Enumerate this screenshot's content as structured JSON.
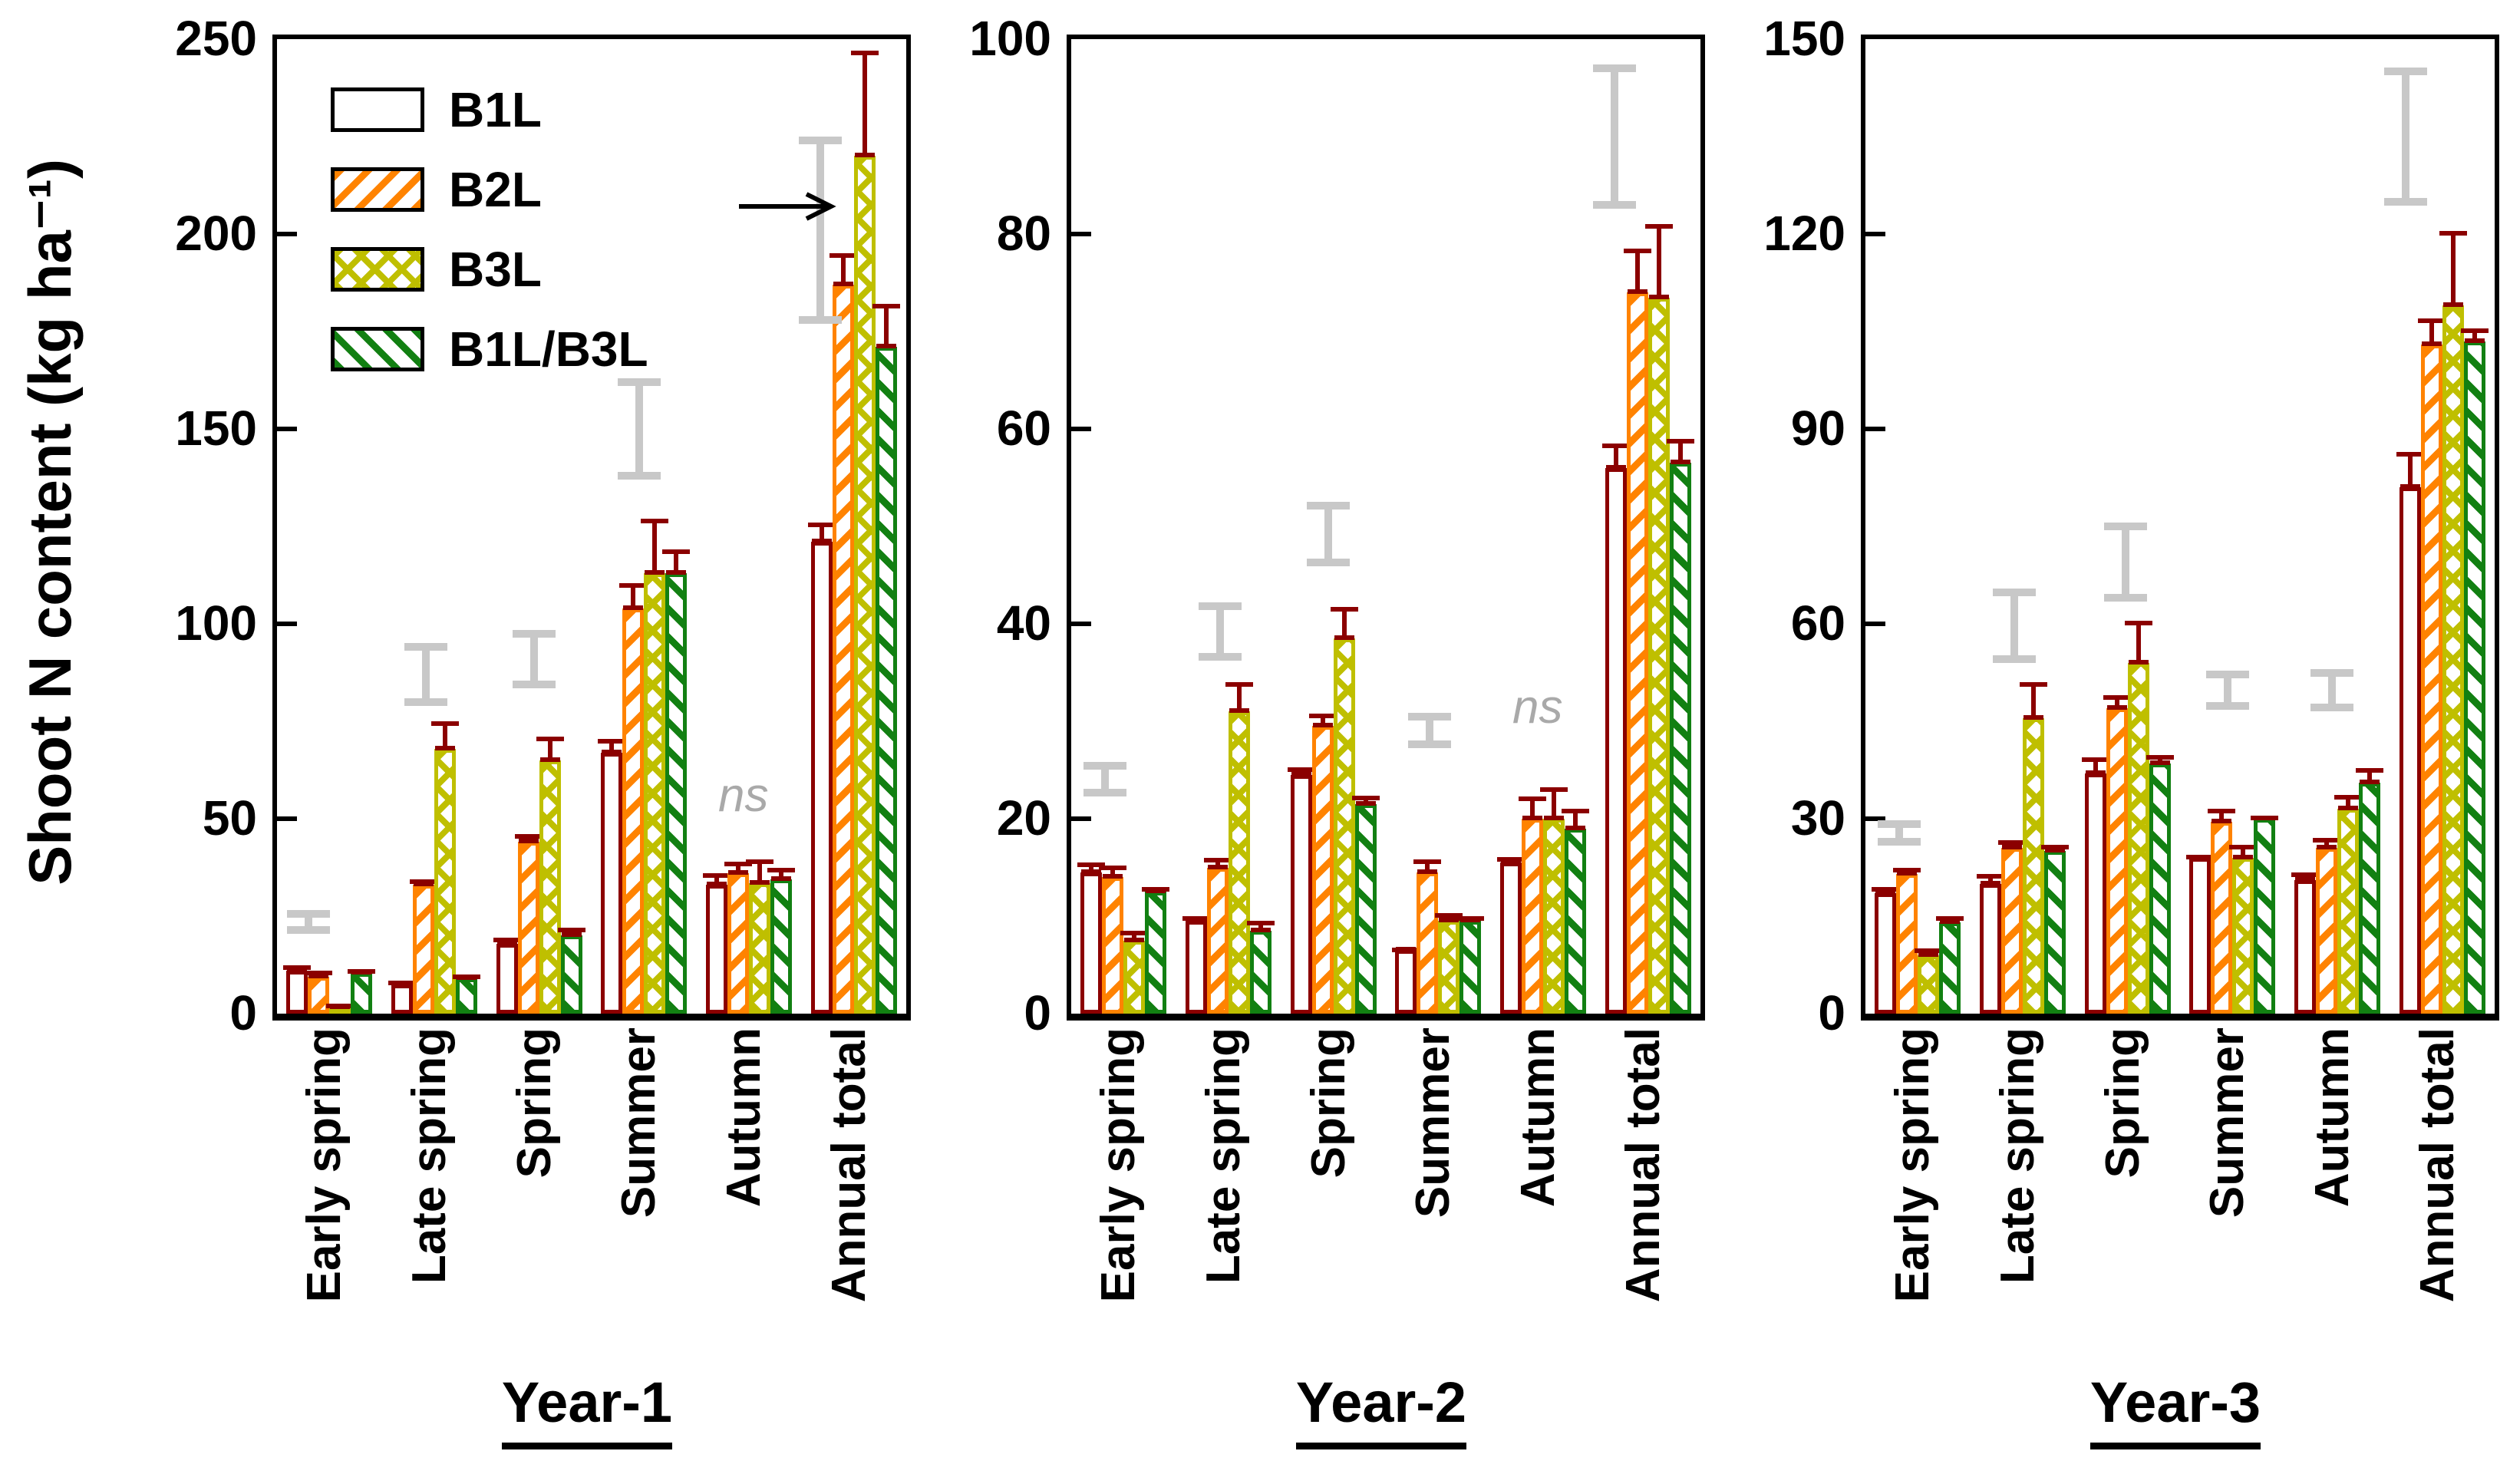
{
  "ylabel": "Shoot N content (kg ha⁻¹)",
  "ns_text": "ns",
  "colors": {
    "b1l": "#8B0000",
    "b2l": "#FF8300",
    "b3l": "#BFBF00",
    "b1l_b3l": "#128012",
    "error_bar": "#8B0000",
    "lsd_bar": "#C8C8C8",
    "axis": "#000000",
    "ns_gray": "#A9A9A9"
  },
  "legend": [
    {
      "label": "B1L",
      "key": "b1l"
    },
    {
      "label": "B2L",
      "key": "b2l"
    },
    {
      "label": "B3L",
      "key": "b3l"
    },
    {
      "label": "B1L/B3L",
      "key": "b1l_b3l"
    }
  ],
  "categories": [
    "Early spring",
    "Late spring",
    "Spring",
    "Summer",
    "Autumn",
    "Annual total"
  ],
  "chart_data": [
    {
      "type": "bar",
      "title": "Year-1",
      "ylim": [
        0,
        250
      ],
      "yticks": [
        0,
        50,
        100,
        150,
        200,
        250
      ],
      "series": [
        {
          "name": "B1L",
          "key": "b1l",
          "values": [
            11,
            7.5,
            18,
            67,
            33,
            121
          ],
          "errors": [
            1.5,
            1,
            1.5,
            3.5,
            3,
            5
          ]
        },
        {
          "name": "B2L",
          "key": "b2l",
          "values": [
            9.5,
            33,
            44,
            104,
            36,
            187
          ],
          "errors": [
            1.5,
            1.5,
            2,
            6.5,
            3,
            8
          ]
        },
        {
          "name": "B3L",
          "key": "b3l",
          "values": [
            1.5,
            68,
            65,
            113,
            33.5,
            220
          ],
          "errors": [
            1,
            7,
            6,
            14,
            6,
            27
          ]
        },
        {
          "name": "B1L/B3L",
          "key": "b1l_b3l",
          "values": [
            10.5,
            9,
            20,
            113,
            34.5,
            171
          ],
          "errors": [
            1,
            1,
            2,
            6,
            3,
            11
          ]
        }
      ],
      "lsd_bars": [
        {
          "category": "Early spring",
          "cat": 0,
          "lo": 21.5,
          "hi": 25.5,
          "frac": 0.3
        },
        {
          "category": "Late spring",
          "cat": 1,
          "lo": 80,
          "hi": 94,
          "frac": 0.42
        },
        {
          "category": "Spring",
          "cat": 2,
          "lo": 84.5,
          "hi": 97.5,
          "frac": 0.45
        },
        {
          "category": "Summer",
          "cat": 3,
          "lo": 138,
          "hi": 162,
          "frac": 0.45
        },
        {
          "category": "Annual total",
          "cat": 5,
          "lo": 178,
          "hi": 224,
          "frac": 0.18
        }
      ],
      "ns_labels": [
        {
          "category": "Autumn",
          "cat": 4,
          "y": 55
        }
      ],
      "arrows": [
        {
          "category": "Annual total",
          "cat": 5,
          "series": "B3L",
          "y": 207
        }
      ]
    },
    {
      "type": "bar",
      "title": "Year-2",
      "ylim": [
        0,
        100
      ],
      "yticks": [
        0,
        20,
        40,
        60,
        80,
        100
      ],
      "series": [
        {
          "name": "B1L",
          "key": "b1l",
          "values": [
            14.5,
            9.5,
            24.5,
            6.5,
            15.5,
            56
          ],
          "errors": [
            1,
            0.5,
            0.8,
            0.3,
            0.6,
            2.5
          ]
        },
        {
          "name": "B2L",
          "key": "b2l",
          "values": [
            14,
            15,
            29.5,
            14.5,
            20,
            74
          ],
          "errors": [
            1.2,
            1,
            1.3,
            1.3,
            2.3,
            4.5
          ]
        },
        {
          "name": "B3L",
          "key": "b3l",
          "values": [
            7.5,
            31,
            38.5,
            9.5,
            20,
            73.5
          ],
          "errors": [
            1,
            3,
            3.2,
            0.8,
            3.2,
            7.5
          ]
        },
        {
          "name": "B1L/B3L",
          "key": "b1l_b3l",
          "values": [
            12.5,
            8.5,
            21.5,
            9.5,
            19,
            56.5
          ],
          "errors": [
            0.5,
            1,
            0.9,
            0.5,
            2,
            2.5
          ]
        }
      ],
      "lsd_bars": [
        {
          "category": "Early spring",
          "cat": 0,
          "lo": 22.7,
          "hi": 25.4,
          "frac": 0.32
        },
        {
          "category": "Late spring",
          "cat": 1,
          "lo": 36.6,
          "hi": 41.8,
          "frac": 0.42
        },
        {
          "category": "Spring",
          "cat": 2,
          "lo": 46.3,
          "hi": 52.1,
          "frac": 0.45
        },
        {
          "category": "Summer",
          "cat": 3,
          "lo": 27.6,
          "hi": 30.5,
          "frac": 0.42
        },
        {
          "category": "Annual total",
          "cat": 5,
          "lo": 83,
          "hi": 97,
          "frac": 0.18
        }
      ],
      "ns_labels": [
        {
          "category": "Autumn",
          "cat": 4,
          "y": 31
        }
      ],
      "arrows": []
    },
    {
      "type": "bar",
      "title": "Year-3",
      "ylim": [
        0,
        150
      ],
      "yticks": [
        0,
        30,
        60,
        90,
        120,
        150
      ],
      "series": [
        {
          "name": "B1L",
          "key": "b1l",
          "values": [
            18.5,
            20,
            37,
            24,
            20.5,
            81
          ],
          "errors": [
            1,
            1.5,
            2.5,
            0.5,
            1.2,
            5.5
          ]
        },
        {
          "name": "B2L",
          "key": "b2l",
          "values": [
            21.5,
            25.5,
            47,
            29.5,
            25.5,
            103
          ],
          "errors": [
            1,
            1.2,
            2,
            2,
            1.5,
            4
          ]
        },
        {
          "name": "B3L",
          "key": "b3l",
          "values": [
            9,
            45.5,
            54,
            24,
            31.5,
            109
          ],
          "errors": [
            1,
            5.5,
            6.5,
            2,
            2.2,
            11.5
          ]
        },
        {
          "name": "B1L/B3L",
          "key": "b1l_b3l",
          "values": [
            14,
            25,
            38.5,
            30,
            35.5,
            103.5
          ],
          "errors": [
            1,
            1,
            1.3,
            0.5,
            2.3,
            2
          ]
        }
      ],
      "lsd_bars": [
        {
          "category": "Early spring",
          "cat": 0,
          "lo": 26.5,
          "hi": 29.2,
          "frac": 0.32
        },
        {
          "category": "Late spring",
          "cat": 1,
          "lo": 54.6,
          "hi": 64.8,
          "frac": 0.42
        },
        {
          "category": "Spring",
          "cat": 2,
          "lo": 64,
          "hi": 75,
          "frac": 0.48
        },
        {
          "category": "Summer",
          "cat": 3,
          "lo": 47.4,
          "hi": 52.2,
          "frac": 0.45
        },
        {
          "category": "Autumn",
          "cat": 4,
          "lo": 47.1,
          "hi": 52.5,
          "frac": 0.45
        },
        {
          "category": "Annual total",
          "cat": 5,
          "lo": 125,
          "hi": 145,
          "frac": 0.15
        }
      ],
      "ns_labels": [],
      "arrows": []
    }
  ]
}
